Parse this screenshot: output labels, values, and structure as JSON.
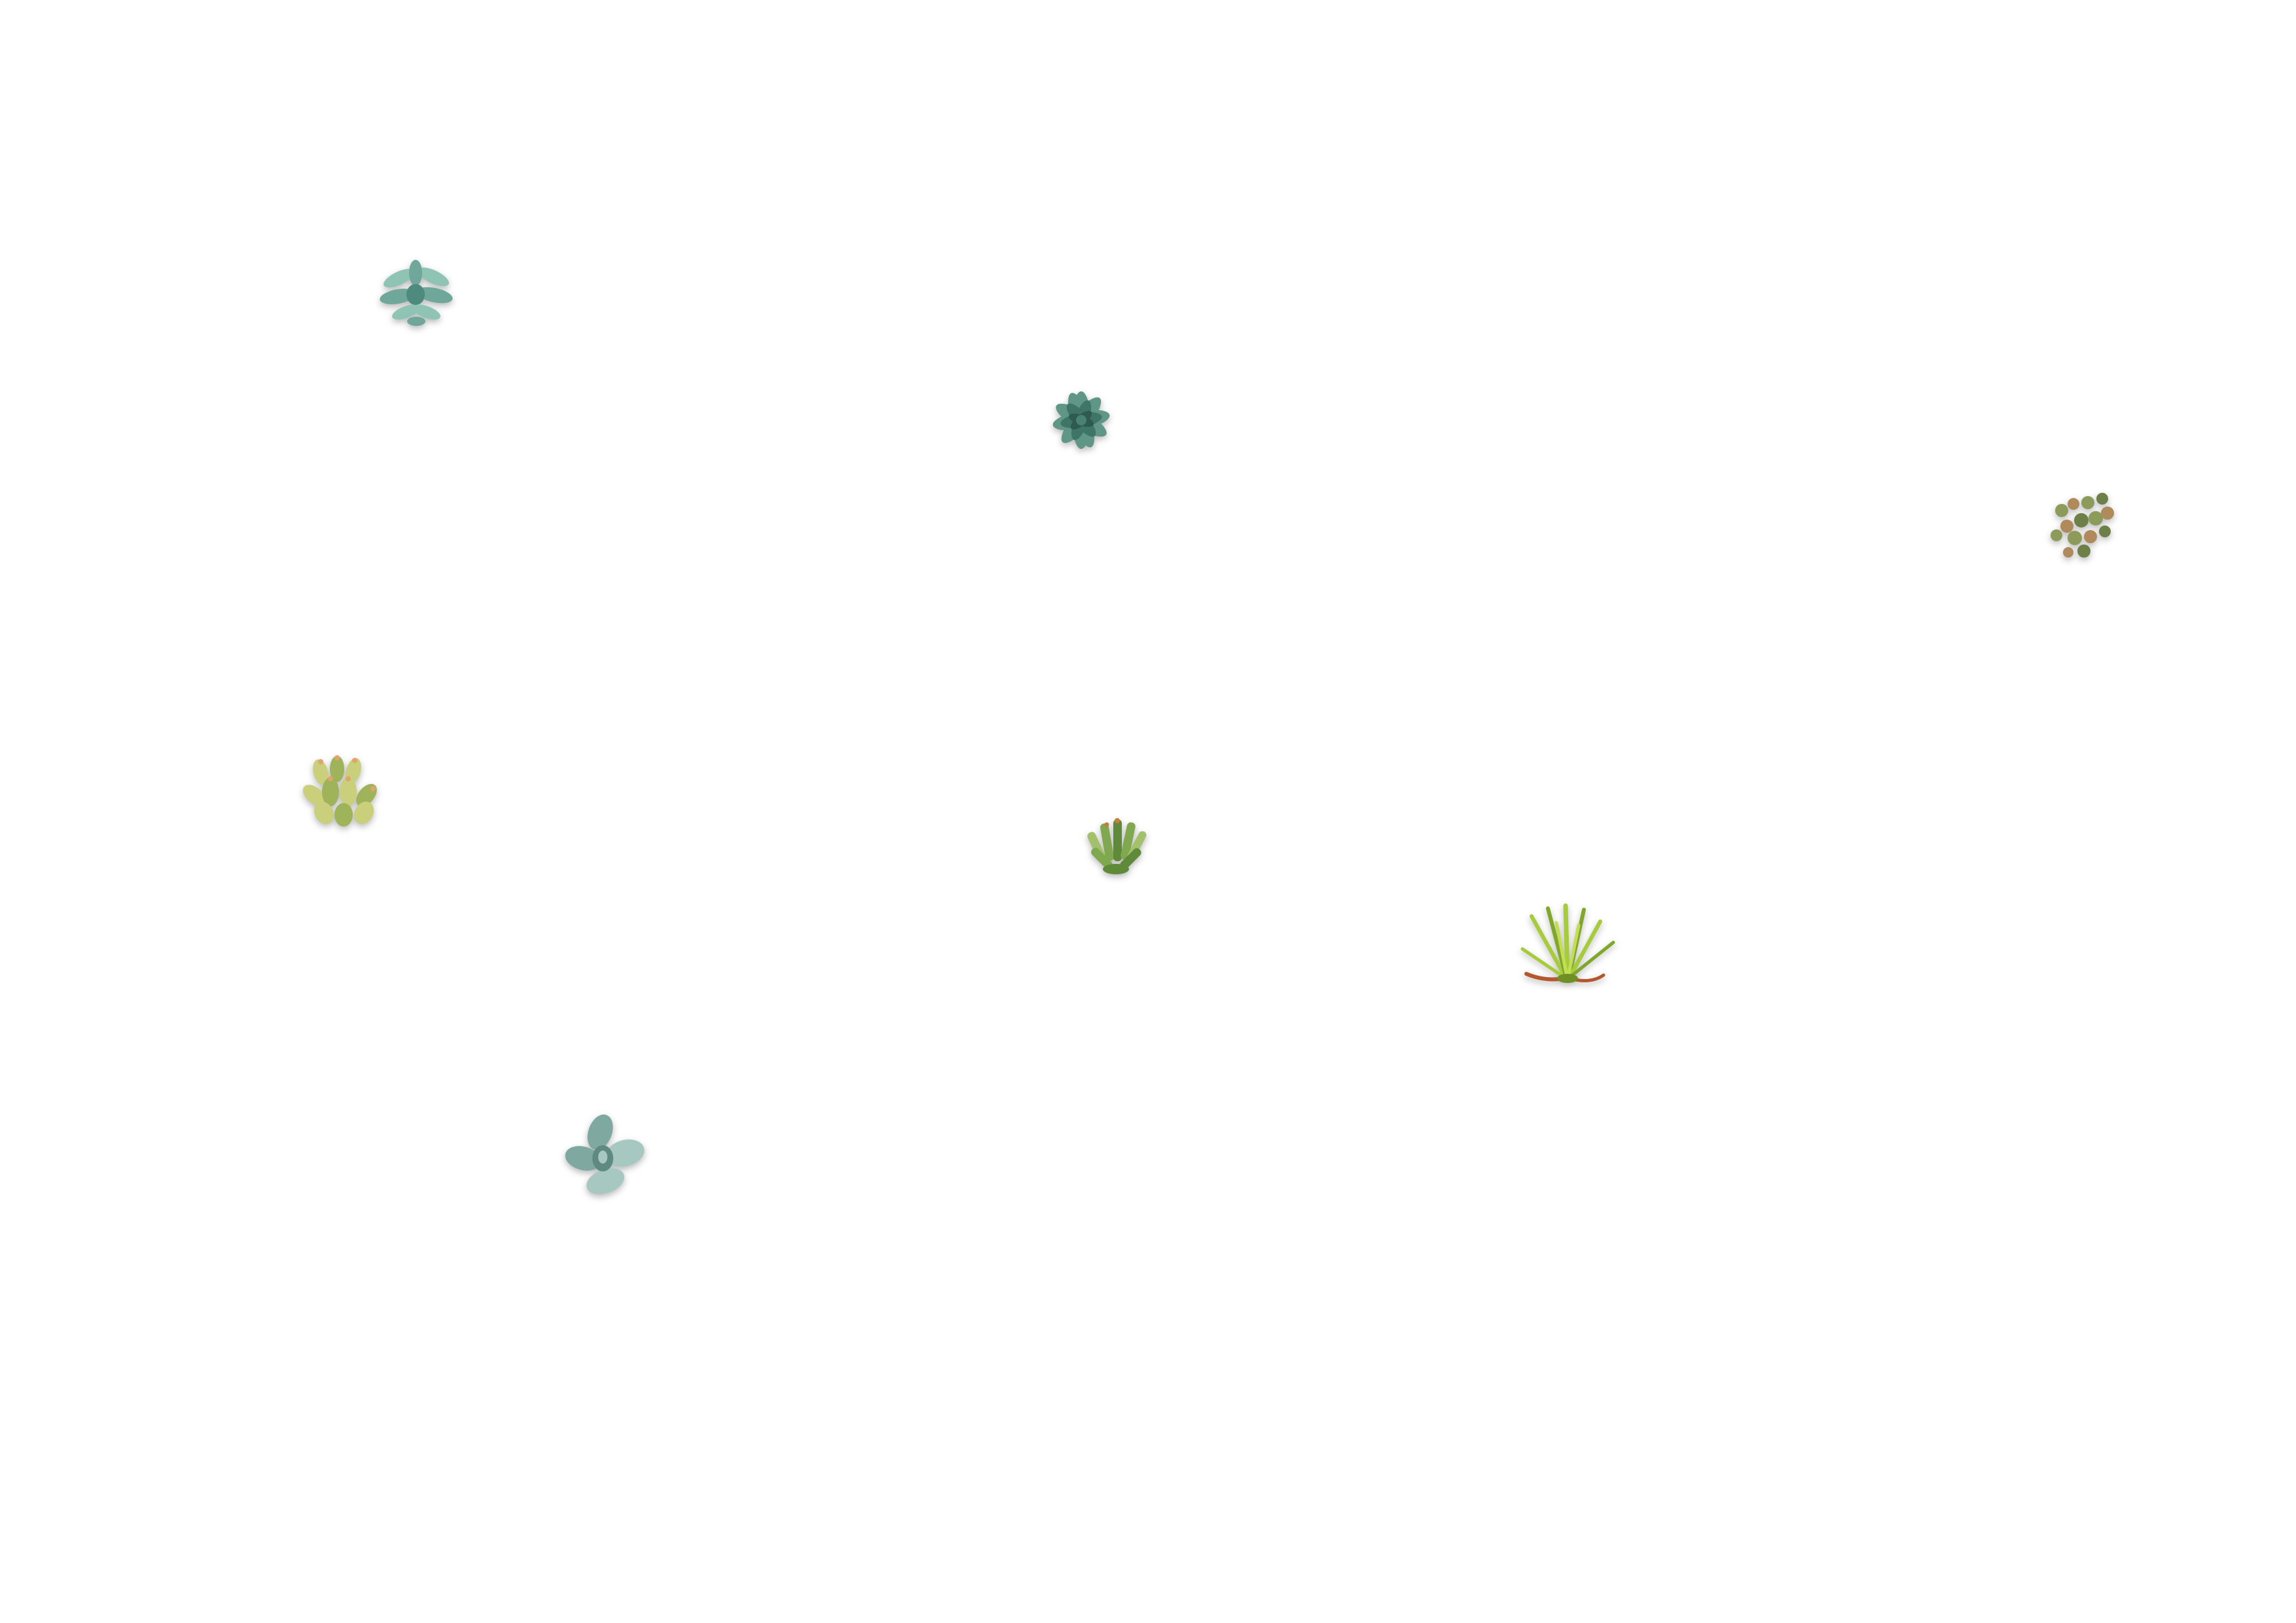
{
  "scene": {
    "background": "#ffffff",
    "plants": [
      {
        "id": "plant-1",
        "kind": "jade-rosette-icon",
        "colors": [
          "#6fa79b",
          "#8fc4b4",
          "#4e8a7d"
        ]
      },
      {
        "id": "plant-2",
        "kind": "echeveria-rosette-icon",
        "colors": [
          "#3f7566",
          "#5f9686",
          "#2e5a4f"
        ]
      },
      {
        "id": "plant-3",
        "kind": "sedum-cluster-icon",
        "colors": [
          "#8c9a5a",
          "#b08a5a",
          "#6f7f48"
        ]
      },
      {
        "id": "plant-4",
        "kind": "yellow-succulent-cluster-icon",
        "colors": [
          "#c9cf7a",
          "#e0a56a",
          "#9fb35a"
        ]
      },
      {
        "id": "plant-5",
        "kind": "finger-succulent-icon",
        "colors": [
          "#7fa84f",
          "#5f8a3a",
          "#a3c06b"
        ]
      },
      {
        "id": "plant-6",
        "kind": "spiky-grass-succulent-icon",
        "colors": [
          "#a6cc3a",
          "#7fa82a",
          "#b5572e"
        ]
      },
      {
        "id": "plant-7",
        "kind": "paddle-succulent-icon",
        "colors": [
          "#7fa8a0",
          "#a7c8c0",
          "#5f8a82"
        ]
      }
    ]
  }
}
